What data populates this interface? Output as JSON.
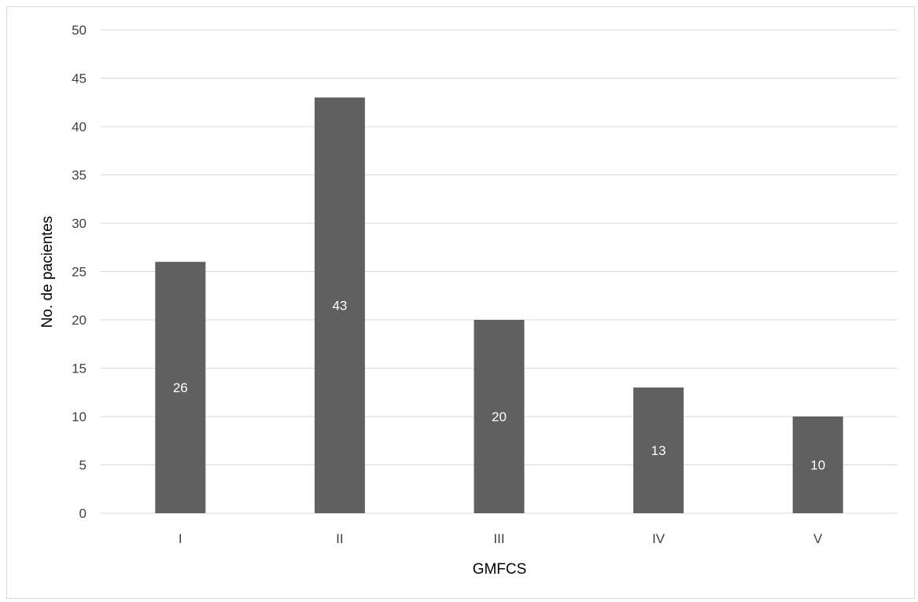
{
  "chart_data": {
    "type": "bar",
    "title": "",
    "xlabel": "GMFCS",
    "ylabel": "No. de pacientes",
    "categories": [
      "I",
      "II",
      "III",
      "IV",
      "V"
    ],
    "values": [
      26,
      43,
      20,
      13,
      10
    ],
    "data_labels": [
      "26",
      "43",
      "20",
      "13",
      "10"
    ],
    "ylim": [
      0,
      50
    ],
    "yticks": [
      0,
      5,
      10,
      15,
      20,
      25,
      30,
      35,
      40,
      45,
      50
    ],
    "grid": true,
    "legend": "none",
    "bar_color": "#606060",
    "gridline_color": "#d9d9d9",
    "label_color": "#ffffff"
  }
}
